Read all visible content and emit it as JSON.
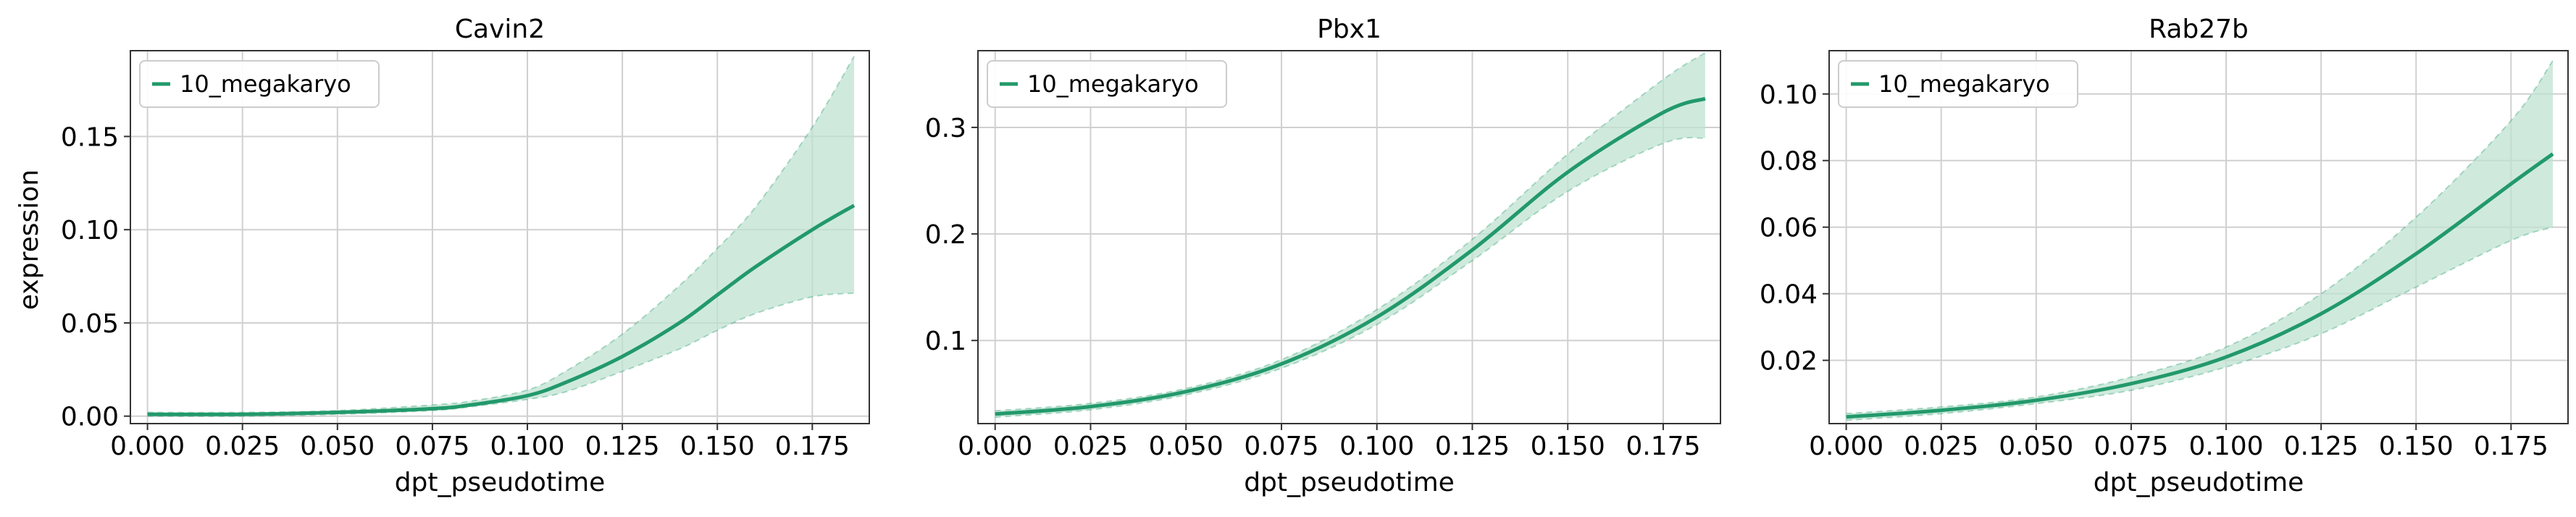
{
  "figure": {
    "ylabel": "expression"
  },
  "colors": {
    "line": "#22996b",
    "band": "#bfe3d2",
    "grid": "#d0d0d0",
    "frame": "#333333"
  },
  "chart_data": [
    {
      "type": "line",
      "title": "Cavin2",
      "xlabel": "dpt_pseudotime",
      "ylabel": "expression",
      "xlim": [
        -0.0045,
        0.19
      ],
      "ylim": [
        -0.004,
        0.196
      ],
      "xticks": [
        "0.000",
        "0.025",
        "0.050",
        "0.075",
        "0.100",
        "0.125",
        "0.150",
        "0.175"
      ],
      "yticks": [
        "0.00",
        "0.05",
        "0.10",
        "0.15"
      ],
      "ytick_values": [
        0.0,
        0.05,
        0.1,
        0.15
      ],
      "grid": true,
      "legend": {
        "placement": "top-left",
        "entries": [
          "10_megakaryo"
        ]
      },
      "series": [
        {
          "name": "10_megakaryo",
          "x": [
            0.0,
            0.025,
            0.05,
            0.075,
            0.085,
            0.1,
            0.11,
            0.125,
            0.14,
            0.15,
            0.16,
            0.175,
            0.186
          ],
          "y": [
            0.001,
            0.001,
            0.002,
            0.004,
            0.006,
            0.011,
            0.018,
            0.032,
            0.05,
            0.065,
            0.08,
            0.1,
            0.113
          ],
          "lower": [
            0.0,
            0.0,
            0.001,
            0.003,
            0.005,
            0.009,
            0.013,
            0.024,
            0.036,
            0.046,
            0.055,
            0.064,
            0.066
          ],
          "upper": [
            0.002,
            0.002,
            0.003,
            0.006,
            0.008,
            0.014,
            0.024,
            0.044,
            0.07,
            0.09,
            0.112,
            0.155,
            0.193
          ]
        }
      ]
    },
    {
      "type": "line",
      "title": "Pbx1",
      "xlabel": "dpt_pseudotime",
      "ylabel": "",
      "xlim": [
        -0.0045,
        0.19
      ],
      "ylim": [
        0.022,
        0.372
      ],
      "xticks": [
        "0.000",
        "0.025",
        "0.050",
        "0.075",
        "0.100",
        "0.125",
        "0.150",
        "0.175"
      ],
      "yticks": [
        "0.1",
        "0.2",
        "0.3"
      ],
      "ytick_values": [
        0.1,
        0.2,
        0.3
      ],
      "grid": true,
      "legend": {
        "placement": "top-left",
        "entries": [
          "10_megakaryo"
        ]
      },
      "series": [
        {
          "name": "10_megakaryo",
          "x": [
            0.0,
            0.025,
            0.05,
            0.075,
            0.1,
            0.125,
            0.15,
            0.175,
            0.186
          ],
          "y": [
            0.031,
            0.038,
            0.052,
            0.078,
            0.122,
            0.185,
            0.258,
            0.314,
            0.327
          ],
          "lower": [
            0.028,
            0.035,
            0.049,
            0.074,
            0.115,
            0.175,
            0.24,
            0.285,
            0.29
          ],
          "upper": [
            0.034,
            0.041,
            0.055,
            0.082,
            0.129,
            0.195,
            0.275,
            0.345,
            0.37
          ]
        }
      ]
    },
    {
      "type": "line",
      "title": "Rab27b",
      "xlabel": "dpt_pseudotime",
      "ylabel": "",
      "xlim": [
        -0.0045,
        0.19
      ],
      "ylim": [
        0.001,
        0.113
      ],
      "xticks": [
        "0.000",
        "0.025",
        "0.050",
        "0.075",
        "0.100",
        "0.125",
        "0.150",
        "0.175"
      ],
      "yticks": [
        "0.02",
        "0.04",
        "0.06",
        "0.08",
        "0.10"
      ],
      "ytick_values": [
        0.02,
        0.04,
        0.06,
        0.08,
        0.1
      ],
      "grid": true,
      "legend": {
        "placement": "top-left",
        "entries": [
          "10_megakaryo"
        ]
      },
      "series": [
        {
          "name": "10_megakaryo",
          "x": [
            0.0,
            0.025,
            0.05,
            0.075,
            0.1,
            0.125,
            0.15,
            0.175,
            0.186
          ],
          "y": [
            0.003,
            0.005,
            0.008,
            0.013,
            0.021,
            0.034,
            0.052,
            0.073,
            0.082
          ],
          "lower": [
            0.002,
            0.004,
            0.007,
            0.011,
            0.018,
            0.028,
            0.042,
            0.056,
            0.06
          ],
          "upper": [
            0.004,
            0.006,
            0.009,
            0.015,
            0.024,
            0.04,
            0.063,
            0.092,
            0.11
          ]
        }
      ]
    }
  ]
}
